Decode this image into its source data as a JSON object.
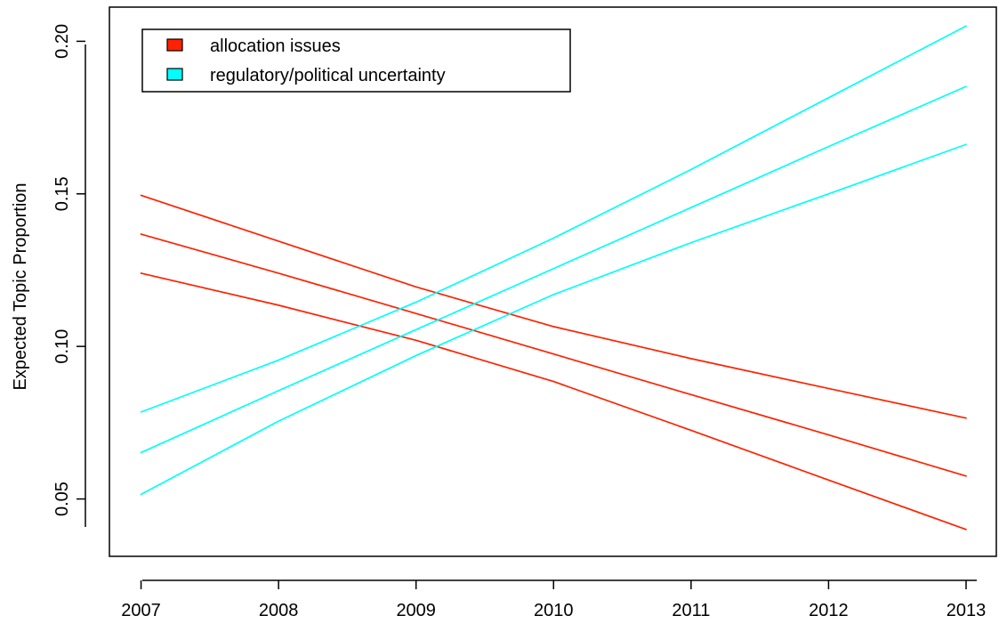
{
  "chart_data": {
    "type": "line",
    "title": "",
    "xlabel": "",
    "ylabel": "Expected Topic Proportion",
    "xlim": [
      2006.77,
      2013.22
    ],
    "ylim": [
      0.0312,
      0.2112
    ],
    "x_ticks": [
      2007,
      2008,
      2009,
      2010,
      2011,
      2012,
      2013
    ],
    "x_tick_labels": [
      "2007",
      "2008",
      "2009",
      "2010",
      "2011",
      "2012",
      "2013"
    ],
    "y_ticks": [
      0.05,
      0.1,
      0.15,
      0.2
    ],
    "y_tick_labels": [
      "0.05",
      "0.10",
      "0.15",
      "0.20"
    ],
    "grid": false,
    "legend": {
      "placement": "top-left",
      "entries": [
        {
          "label": "allocation issues",
          "color": "#ff2200"
        },
        {
          "label": "regulatory/political uncertainty",
          "color": "#00ffff"
        }
      ]
    },
    "x": [
      2007,
      2008,
      2009,
      2010,
      2011,
      2012,
      2013
    ],
    "series": [
      {
        "group": "allocation issues",
        "color": "#ff2200",
        "role": "upper",
        "values": [
          0.1495,
          0.1345,
          0.1195,
          0.1065,
          0.096,
          0.0862,
          0.0765
        ]
      },
      {
        "group": "allocation issues",
        "color": "#ff2200",
        "role": "estimate",
        "values": [
          0.1368,
          0.124,
          0.1108,
          0.0975,
          0.0842,
          0.071,
          0.0575
        ]
      },
      {
        "group": "allocation issues",
        "color": "#ff2200",
        "role": "lower",
        "values": [
          0.124,
          0.1135,
          0.102,
          0.0885,
          0.0725,
          0.0562,
          0.04
        ]
      },
      {
        "group": "regulatory/political uncertainty",
        "color": "#00ffff",
        "role": "upper",
        "values": [
          0.0785,
          0.0955,
          0.1145,
          0.1355,
          0.158,
          0.1815,
          0.205
        ]
      },
      {
        "group": "regulatory/political uncertainty",
        "color": "#00ffff",
        "role": "estimate",
        "values": [
          0.0652,
          0.0855,
          0.1055,
          0.1255,
          0.1455,
          0.1655,
          0.1852
        ]
      },
      {
        "group": "regulatory/political uncertainty",
        "color": "#00ffff",
        "role": "lower",
        "values": [
          0.0515,
          0.0755,
          0.097,
          0.117,
          0.134,
          0.15,
          0.1662
        ]
      }
    ]
  }
}
